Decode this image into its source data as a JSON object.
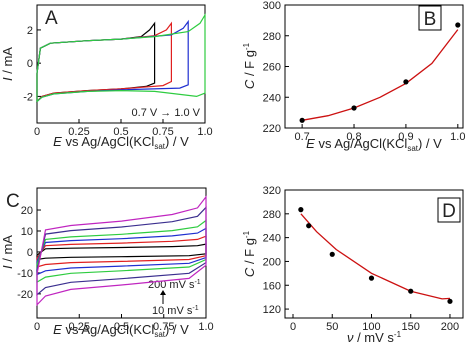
{
  "chart_data": [
    {
      "type": "line",
      "panel": "A",
      "xlabel": [
        "E",
        " vs Ag/AgCl(KCl",
        "sat",
        ") / V"
      ],
      "ylabel": [
        "I",
        " / mA"
      ],
      "annotation": "0.7 V → 1.0 V",
      "xlim": [
        0,
        1
      ],
      "ylim": [
        -3.6,
        3.5
      ],
      "xticks": [
        0,
        0.25,
        0.5,
        0.75,
        {
          "value": 1,
          "label": "1.0"
        }
      ],
      "yticks": [
        -2,
        0,
        2
      ],
      "series": [
        {
          "color": "#000000",
          "x": [
            0,
            0.02,
            0.08,
            0.3,
            0.5,
            0.62,
            0.67,
            0.7,
            0.7,
            0.65,
            0.5,
            0.3,
            0.1,
            0.03,
            0,
            0
          ],
          "values": [
            -0.6,
            0.9,
            1.2,
            1.35,
            1.45,
            1.6,
            2.0,
            2.4,
            -1.2,
            -1.4,
            -1.55,
            -1.65,
            -1.8,
            -2.0,
            -2.3,
            -0.6
          ]
        },
        {
          "color": "#e02020",
          "x": [
            0,
            0.02,
            0.08,
            0.3,
            0.5,
            0.7,
            0.77,
            0.8,
            0.8,
            0.75,
            0.5,
            0.3,
            0.1,
            0.03,
            0,
            0
          ],
          "values": [
            -0.6,
            0.9,
            1.2,
            1.35,
            1.45,
            1.65,
            2.0,
            2.4,
            -1.1,
            -1.35,
            -1.55,
            -1.65,
            -1.8,
            -2.0,
            -2.3,
            -0.6
          ]
        },
        {
          "color": "#1f2fd0",
          "x": [
            0,
            0.02,
            0.08,
            0.3,
            0.5,
            0.8,
            0.87,
            0.9,
            0.9,
            0.85,
            0.5,
            0.3,
            0.1,
            0.03,
            0,
            0
          ],
          "values": [
            -0.6,
            0.9,
            1.2,
            1.35,
            1.45,
            1.7,
            2.1,
            2.5,
            -1.3,
            -1.5,
            -1.6,
            -1.7,
            -1.85,
            -2.05,
            -2.3,
            -0.6
          ]
        },
        {
          "color": "#2ecc40",
          "x": [
            0,
            0.02,
            0.08,
            0.3,
            0.5,
            0.7,
            0.9,
            0.97,
            1.0,
            1.0,
            0.95,
            0.7,
            0.5,
            0.3,
            0.1,
            0.03,
            0,
            0
          ],
          "values": [
            -0.6,
            0.9,
            1.2,
            1.35,
            1.45,
            1.6,
            1.9,
            2.4,
            2.9,
            -1.8,
            -2.0,
            -1.7,
            -1.65,
            -1.7,
            -1.85,
            -2.05,
            -2.3,
            -0.6
          ]
        }
      ]
    },
    {
      "type": "scatter",
      "panel": "B",
      "xlabel": [
        "E",
        " vs Ag/AgCl(KCl",
        "sat",
        ") / V"
      ],
      "ylabel": [
        "C",
        " / F g",
        "-1"
      ],
      "xlim": [
        0.667,
        1.01
      ],
      "ylim": [
        220,
        300
      ],
      "xticks": [
        0.7,
        0.8,
        0.9,
        {
          "value": 1,
          "label": "1.0"
        }
      ],
      "yticks": [
        220,
        240,
        260,
        280,
        300
      ],
      "x": [
        0.7,
        0.8,
        0.9,
        1.0
      ],
      "values": [
        225,
        233,
        250,
        287
      ],
      "color": "#000000",
      "fit": {
        "color": "#cc1111",
        "x": [
          0.7,
          0.75,
          0.8,
          0.85,
          0.9,
          0.95,
          1.0
        ],
        "values": [
          225,
          228,
          233,
          240,
          249,
          262,
          284
        ]
      }
    },
    {
      "type": "line",
      "panel": "C",
      "xlabel": [
        "E",
        " vs Ag/AgCl(KCl",
        "sat",
        ") / V"
      ],
      "ylabel": [
        "I",
        " / mA"
      ],
      "annotations": [
        [
          "200 mV s",
          "-1"
        ],
        [
          "10 mV s",
          "-1"
        ]
      ],
      "xlim": [
        0,
        1
      ],
      "ylim": [
        -31.5,
        30.5
      ],
      "xticks": [
        0,
        0.25,
        0.5,
        0.75,
        {
          "value": 1,
          "label": "1.0"
        }
      ],
      "yticks": [
        -20,
        -10,
        0,
        10,
        20
      ],
      "series": [
        {
          "color": "#000000",
          "x": [
            0,
            0.05,
            0.2,
            0.5,
            0.8,
            0.95,
            1,
            1,
            0.9,
            0.5,
            0.2,
            0.05,
            0,
            0
          ],
          "values": [
            -1.5,
            1.5,
            1.8,
            2.1,
            2.55,
            3,
            3.75,
            -0.9,
            -1.8,
            -2.25,
            -2.55,
            -3,
            -3.6,
            -1.5
          ]
        },
        {
          "color": "#e02020",
          "x": [
            0,
            0.05,
            0.2,
            0.5,
            0.8,
            0.95,
            1,
            1,
            0.9,
            0.5,
            0.2,
            0.05,
            0,
            0
          ],
          "values": [
            -3,
            3,
            3.6,
            4.2,
            5.1,
            6,
            7.5,
            -1.8,
            -3.6,
            -4.5,
            -5.1,
            -6,
            -7.2,
            -3
          ]
        },
        {
          "color": "#1f2fd0",
          "x": [
            0,
            0.05,
            0.2,
            0.5,
            0.8,
            0.95,
            1,
            1,
            0.9,
            0.5,
            0.2,
            0.05,
            0,
            0
          ],
          "values": [
            -4.5,
            4.5,
            5.4,
            6.3,
            7.65,
            9,
            11.25,
            -2.7,
            -5.4,
            -6.75,
            -7.65,
            -9,
            -10.8,
            -4.5
          ]
        },
        {
          "color": "#2ecc40",
          "x": [
            0,
            0.05,
            0.2,
            0.5,
            0.8,
            0.95,
            1,
            1,
            0.9,
            0.5,
            0.2,
            0.05,
            0,
            0
          ],
          "values": [
            -6,
            6,
            7.2,
            8.4,
            10.2,
            12,
            15,
            -3.6,
            -7.2,
            -9,
            -10.2,
            -12,
            -14.4,
            -6
          ]
        },
        {
          "color": "#3b2f8f",
          "x": [
            0,
            0.05,
            0.2,
            0.5,
            0.8,
            0.95,
            1,
            1,
            0.9,
            0.5,
            0.2,
            0.05,
            0,
            0
          ],
          "values": [
            -8.5,
            8.5,
            10.2,
            11.9,
            14.45,
            17,
            21.25,
            -5.1,
            -10.2,
            -12.75,
            -14.45,
            -17,
            -20.4,
            -8.5
          ]
        },
        {
          "color": "#c026c0",
          "x": [
            0,
            0.05,
            0.2,
            0.5,
            0.8,
            0.95,
            1,
            1,
            0.9,
            0.5,
            0.2,
            0.05,
            0,
            0
          ],
          "values": [
            -10.5,
            10.5,
            12.6,
            14.7,
            17.85,
            21,
            26.25,
            -6.3,
            -12.6,
            -15.75,
            -17.85,
            -21,
            -25.2,
            -10.5
          ]
        }
      ]
    },
    {
      "type": "scatter",
      "panel": "D",
      "xlabel": [
        "ν",
        " / mV s",
        "-1"
      ],
      "ylabel": [
        "C",
        " / F g",
        "-1"
      ],
      "xlim": [
        -10.2,
        216.6
      ],
      "ylim": [
        105,
        320
      ],
      "xticks": [
        0,
        50,
        100,
        150,
        200
      ],
      "yticks": [
        120,
        160,
        200,
        240,
        280,
        320
      ],
      "x": [
        10,
        20,
        50,
        100,
        150,
        200
      ],
      "values": [
        287,
        260,
        212,
        172,
        150,
        133
      ],
      "color": "#000000",
      "fit": {
        "color": "#cc1111",
        "x": [
          10,
          30,
          55,
          100,
          150,
          190,
          200
        ],
        "values": [
          280,
          250,
          220,
          180,
          150,
          137,
          138
        ]
      }
    }
  ]
}
